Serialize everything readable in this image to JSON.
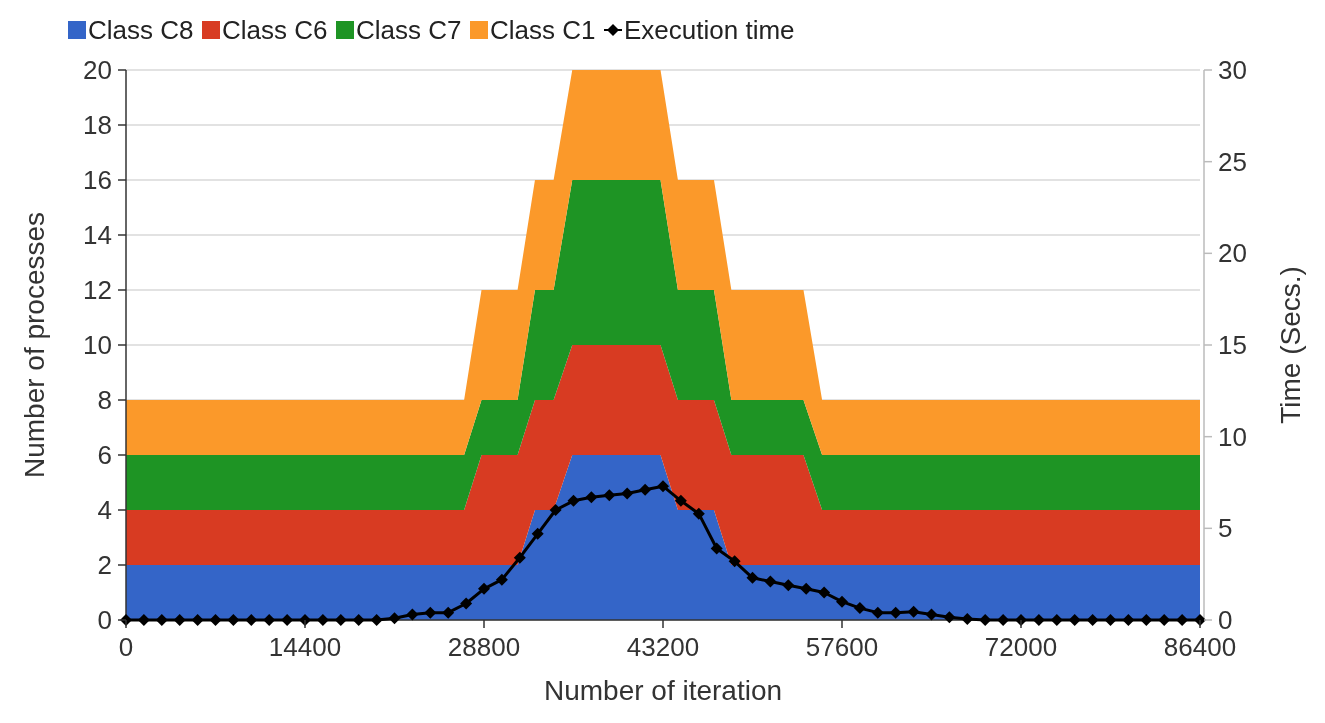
{
  "chart_data": {
    "type": "area",
    "stacked": true,
    "xlabel": "Number of iteration",
    "ylabel": "Number of processes",
    "y2label": "Time (Secs.)",
    "x": [
      0,
      27200,
      28600,
      31500,
      32900,
      34400,
      35900,
      43000,
      44400,
      47300,
      48700,
      54500,
      56000,
      86400
    ],
    "xlim": [
      0,
      86400
    ],
    "xticks": [
      0,
      14400,
      28800,
      43200,
      57600,
      72000,
      86400
    ],
    "ylim": [
      0,
      20
    ],
    "yticks": [
      0,
      2,
      4,
      6,
      8,
      10,
      12,
      14,
      16,
      18,
      20
    ],
    "y2lim": [
      0,
      30
    ],
    "y2ticks": [
      0,
      5,
      10,
      15,
      20,
      25,
      30
    ],
    "grid": "y",
    "legend": "top",
    "series": [
      {
        "name": "Class C8",
        "color": "#3465c8",
        "values": [
          2,
          2,
          2,
          2,
          4,
          4,
          6,
          6,
          4,
          4,
          2,
          2,
          2,
          2
        ]
      },
      {
        "name": "Class C6",
        "color": "#d83b22",
        "values": [
          2,
          2,
          4,
          4,
          4,
          4,
          4,
          4,
          4,
          4,
          4,
          4,
          2,
          2
        ]
      },
      {
        "name": "Class C7",
        "color": "#1e9424",
        "values": [
          2,
          2,
          2,
          2,
          4,
          4,
          6,
          6,
          4,
          4,
          2,
          2,
          2,
          2
        ]
      },
      {
        "name": "Class C1",
        "color": "#fb992a",
        "values": [
          2,
          2,
          4,
          4,
          4,
          4,
          4,
          4,
          4,
          4,
          4,
          4,
          2,
          2
        ]
      },
      {
        "name": "Execution time",
        "type": "line",
        "axis": "y2",
        "color": "#000000",
        "marker": "diamond",
        "x": [
          0,
          1440,
          2880,
          4320,
          5760,
          7200,
          8640,
          10080,
          11520,
          12960,
          14400,
          15840,
          17280,
          18720,
          20160,
          21600,
          23040,
          24480,
          25920,
          27360,
          28800,
          30240,
          31680,
          33120,
          34560,
          36000,
          37440,
          38880,
          40320,
          41760,
          43200,
          44640,
          46080,
          47520,
          48960,
          50400,
          51840,
          53280,
          54720,
          56160,
          57600,
          59040,
          60480,
          61920,
          63360,
          64800,
          66240,
          67680,
          69120,
          70560,
          72000,
          73440,
          74880,
          76320,
          77760,
          79200,
          80640,
          82080,
          83520,
          84960,
          86400
        ],
        "values": [
          0,
          0,
          0,
          0,
          0,
          0,
          0,
          0,
          0,
          0,
          0,
          0,
          0,
          0,
          0,
          0.1,
          0.3,
          0.4,
          0.4,
          0.9,
          1.7,
          2.2,
          3.4,
          4.7,
          6.0,
          6.5,
          6.7,
          6.8,
          6.9,
          7.1,
          7.3,
          6.5,
          5.8,
          3.9,
          3.2,
          2.3,
          2.1,
          1.9,
          1.7,
          1.5,
          1.0,
          0.65,
          0.4,
          0.4,
          0.45,
          0.3,
          0.15,
          0.05,
          0,
          0,
          0,
          0,
          0,
          0,
          0,
          0,
          0,
          0,
          0,
          0,
          0
        ]
      }
    ]
  }
}
